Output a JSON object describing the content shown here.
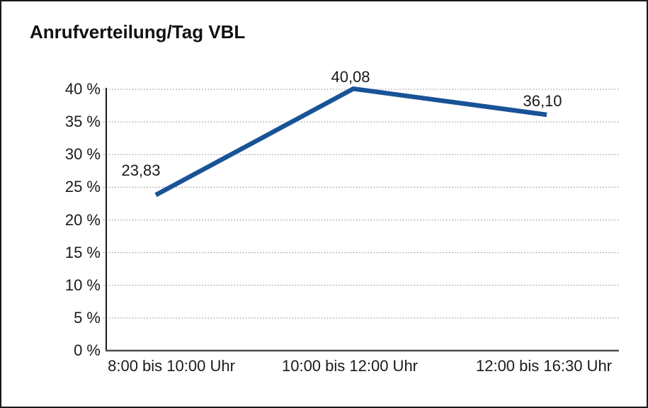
{
  "title": "Anrufverteilung/Tag VBL",
  "colors": {
    "line": "#185396",
    "axis": "#1a1a1a",
    "bottom_axis": "#4d4d4d",
    "gridline": "#999999",
    "text": "#1a1a1a",
    "background": "#ffffff",
    "border": "#1a1a1a"
  },
  "chart_data": {
    "type": "line",
    "title": "Anrufverteilung/Tag VBL",
    "categories": [
      "8:00 bis 10:00 Uhr",
      "10:00 bis 12:00 Uhr",
      "12:00 bis 16:30 Uhr"
    ],
    "values": [
      23.83,
      40.08,
      36.1
    ],
    "data_labels": [
      "23,83",
      "40,08",
      "36,10"
    ],
    "series_name": "",
    "xlabel": "",
    "ylabel": "",
    "ylim": [
      0,
      40
    ],
    "ytick_step": 5,
    "ytick_labels": [
      "0 %",
      "5 %",
      "10 %",
      "15 %",
      "20 %",
      "25 %",
      "30 %",
      "35 %",
      "40 %"
    ],
    "grid": "horizontal-dotted",
    "legend_position": "none"
  }
}
